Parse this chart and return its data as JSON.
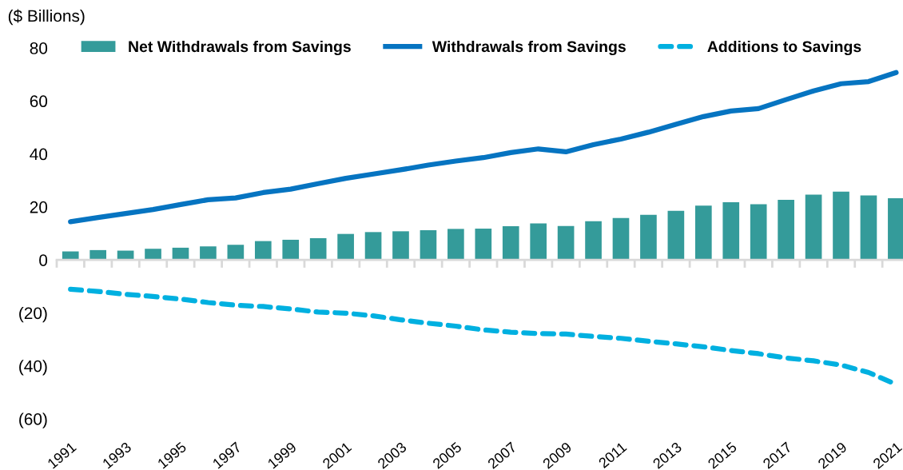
{
  "chart_data": {
    "type": "bar",
    "ylabel": "($ Billions)",
    "categories": [
      "1991",
      null,
      "1993",
      null,
      "1995",
      null,
      "1997",
      null,
      "1999",
      null,
      "2001",
      null,
      "2003",
      null,
      "2005",
      null,
      "2007",
      null,
      "2009",
      null,
      "2011",
      null,
      "2013",
      null,
      "2015",
      null,
      "2017",
      null,
      "2019",
      null,
      "2021"
    ],
    "series": [
      {
        "name": "Net Withdrawals from Savings",
        "color": "#349b9a",
        "values": [
          3.2,
          3.7,
          3.5,
          4.2,
          4.6,
          5.1,
          5.7,
          7.1,
          7.6,
          8.2,
          9.8,
          10.5,
          10.8,
          11.2,
          11.7,
          11.8,
          12.7,
          13.8,
          12.8,
          14.6,
          15.8,
          17.0,
          18.5,
          20.5,
          21.8,
          21.0,
          22.7,
          24.6,
          25.8,
          24.3,
          23.3
        ]
      },
      {
        "name": "Withdrawals from Savings",
        "type": "line",
        "line_style": "solid",
        "color": "#0674c1",
        "values": [
          14.4,
          16.0,
          17.5,
          19.0,
          20.9,
          22.7,
          23.4,
          25.4,
          26.7,
          28.8,
          30.8,
          32.4,
          34.0,
          35.8,
          37.3,
          38.6,
          40.5,
          41.9,
          40.8,
          43.5,
          45.6,
          48.2,
          51.2,
          54.1,
          56.2,
          57.1,
          60.5,
          63.8,
          66.5,
          67.3,
          70.7
        ]
      },
      {
        "name": "Additions to Savings",
        "type": "line",
        "line_style": "dashed",
        "color": "#00b0e0",
        "values": [
          -11.1,
          -11.9,
          -13.0,
          -13.8,
          -14.8,
          -16.1,
          -17.1,
          -17.6,
          -18.5,
          -19.7,
          -20.1,
          -21.1,
          -22.6,
          -23.9,
          -25.0,
          -26.4,
          -27.3,
          -27.8,
          -28.0,
          -28.9,
          -29.6,
          -30.7,
          -31.7,
          -32.8,
          -34.2,
          -35.4,
          -37.0,
          -38.1,
          -39.7,
          -42.5,
          -47.0
        ]
      }
    ],
    "ylim": [
      -60,
      80
    ],
    "yticks": [
      80,
      60,
      40,
      20,
      0,
      {
        "value": -20,
        "label": "(20)"
      },
      {
        "value": -40,
        "label": "(40)"
      },
      {
        "value": -60,
        "label": "(60)"
      }
    ],
    "legend": "top"
  }
}
